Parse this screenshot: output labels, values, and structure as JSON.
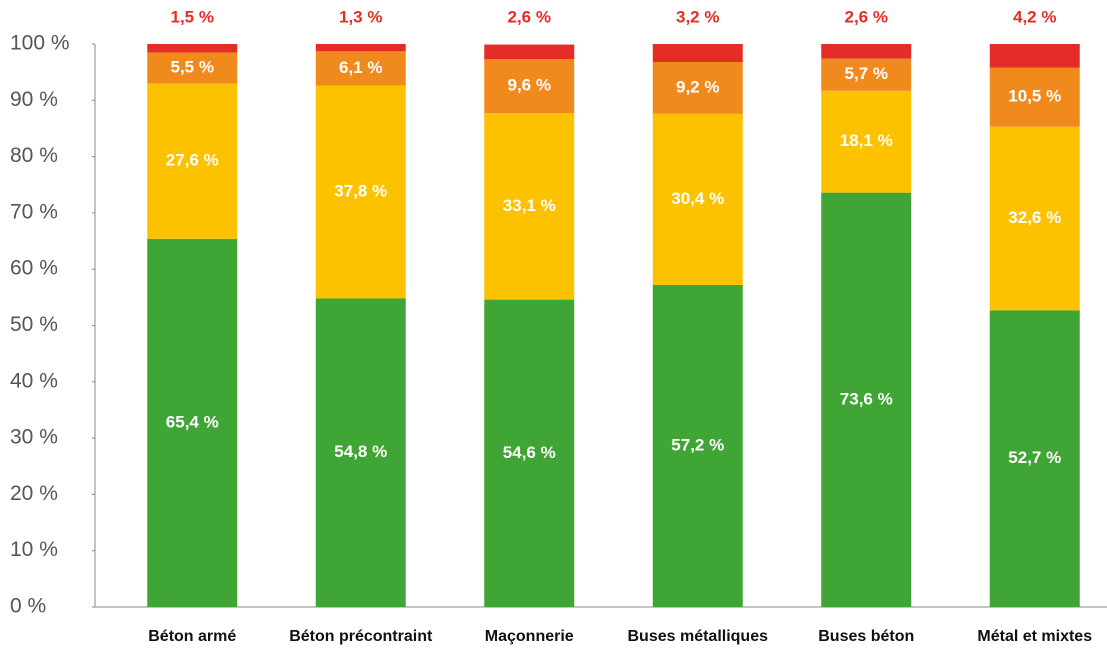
{
  "chart_data": {
    "type": "stacked_bar",
    "categories": [
      "Béton armé",
      "Béton précontraint",
      "Maçonnerie",
      "Buses métalliques",
      "Buses béton",
      "Métal et mixtes"
    ],
    "series": [
      {
        "color": "#3fa535",
        "values": [
          65.4,
          54.8,
          54.6,
          57.2,
          73.6,
          52.7
        ],
        "value_labels": [
          "65,4 %",
          "54,8 %",
          "54,6 %",
          "57,2 %",
          "73,6 %",
          "52,7 %"
        ]
      },
      {
        "color": "#fcc200",
        "values": [
          27.6,
          37.8,
          33.1,
          30.4,
          18.1,
          32.6
        ],
        "value_labels": [
          "27,6 %",
          "37,8 %",
          "33,1 %",
          "30,4 %",
          "18,1 %",
          "32,6 %"
        ]
      },
      {
        "color": "#f18a1c",
        "values": [
          5.5,
          6.1,
          9.6,
          9.2,
          5.7,
          10.5
        ],
        "value_labels": [
          "5,5 %",
          "6,1 %",
          "9,6 %",
          "9,2 %",
          "5,7 %",
          "10,5 %"
        ]
      },
      {
        "color": "#e52d27",
        "values": [
          1.5,
          1.3,
          2.6,
          3.2,
          2.6,
          4.2
        ],
        "value_labels": [
          "1,5 %",
          "1,3 %",
          "2,6 %",
          "3,2 %",
          "2,6 %",
          "4,2 %"
        ]
      }
    ],
    "ylim": [
      0,
      100
    ],
    "yticks": [
      {
        "value": 0,
        "label": "0 %"
      },
      {
        "value": 10,
        "label": "10 %"
      },
      {
        "value": 20,
        "label": "20 %"
      },
      {
        "value": 30,
        "label": "30 %"
      },
      {
        "value": 40,
        "label": "40 %"
      },
      {
        "value": 50,
        "label": "50 %"
      },
      {
        "value": 60,
        "label": "60 %"
      },
      {
        "value": 70,
        "label": "70 %"
      },
      {
        "value": 80,
        "label": "80 %"
      },
      {
        "value": 90,
        "label": "90 %"
      },
      {
        "value": 100,
        "label": "100 %"
      }
    ]
  }
}
